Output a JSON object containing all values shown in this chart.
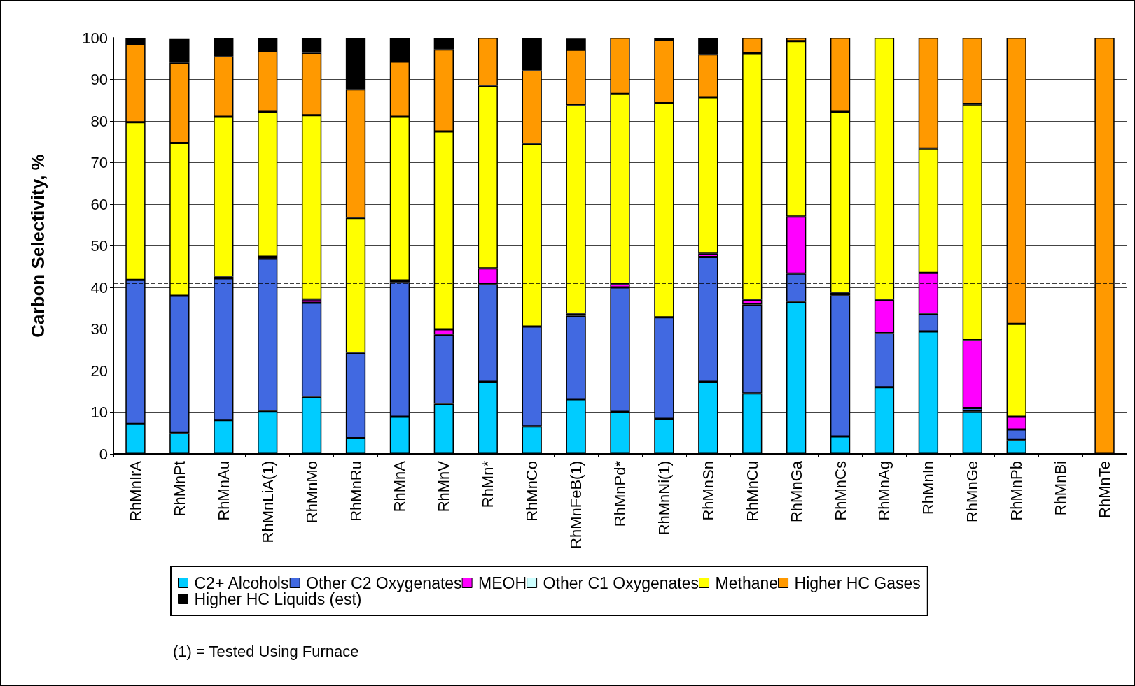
{
  "chart_data": {
    "type": "bar",
    "ylabel": "Carbon Selectivity, %",
    "stacked": true,
    "grid": "y",
    "legend": "bottom",
    "categories": [
      "RhMnIrA",
      "RhMnPt",
      "RhMnAu",
      "RhMnLiA(1)",
      "RhMnMo",
      "RhMnRu",
      "RhMnA",
      "RhMnV",
      "RhMn*",
      "RhMnCo",
      "RhMnFeB(1)",
      "RhMnPd*",
      "RhMnNi(1)",
      "RhMnSn",
      "RhMnCu",
      "RhMnGa",
      "RhMnCs",
      "RhMnAg",
      "RhMnIn",
      "RhMnGe",
      "RhMnPb",
      "RhMnBi",
      "RhMnTe"
    ],
    "ylim": [
      0,
      100
    ],
    "yticks": [
      0,
      10,
      20,
      30,
      40,
      50,
      60,
      70,
      80,
      90,
      100
    ],
    "series": [
      {
        "name": "C2+ Alcohols",
        "color": "#00ccff",
        "values": [
          7.2,
          5.0,
          8.1,
          10.3,
          13.7,
          3.8,
          8.9,
          12.0,
          17.3,
          6.6,
          13.1,
          10.1,
          8.4,
          17.3,
          14.5,
          36.5,
          4.2,
          16.0,
          29.4,
          10.2,
          3.3,
          null,
          null
        ]
      },
      {
        "name": "Other C2 Oxygenates",
        "color": "#4169e1",
        "values": [
          34.6,
          33.0,
          34.1,
          36.6,
          22.6,
          20.5,
          32.4,
          16.6,
          23.5,
          24.0,
          20.1,
          29.9,
          24.4,
          30.0,
          21.4,
          6.8,
          33.9,
          13.0,
          4.3,
          0.8,
          2.6,
          null,
          null
        ]
      },
      {
        "name": "MEOH",
        "color": "#ff00ff",
        "values": [
          null,
          null,
          0.4,
          0.5,
          0.8,
          null,
          0.4,
          1.3,
          3.8,
          null,
          0.5,
          0.8,
          null,
          0.8,
          1.1,
          13.7,
          0.6,
          8.0,
          9.8,
          16.3,
          3.0,
          null,
          null
        ]
      },
      {
        "name": "Other C1 Oxygenates",
        "color": "#ccffff",
        "values": [
          null,
          null,
          null,
          null,
          null,
          null,
          null,
          null,
          null,
          null,
          null,
          null,
          null,
          null,
          null,
          null,
          null,
          null,
          null,
          null,
          null,
          null,
          null
        ]
      },
      {
        "name": "Methane",
        "color": "#ffff00",
        "values": [
          37.9,
          36.7,
          38.4,
          34.8,
          44.3,
          32.4,
          39.3,
          47.6,
          43.9,
          43.9,
          50.1,
          45.7,
          51.5,
          37.6,
          59.3,
          42.2,
          43.5,
          63.0,
          29.9,
          56.7,
          22.3,
          null,
          null
        ]
      },
      {
        "name": "Higher HC Gases",
        "color": "#ff9900",
        "values": [
          18.8,
          19.3,
          14.6,
          14.6,
          15.0,
          30.9,
          13.3,
          19.7,
          11.5,
          17.7,
          13.3,
          13.5,
          15.2,
          10.3,
          3.7,
          0.8,
          17.8,
          null,
          26.6,
          16.0,
          68.8,
          null,
          100
        ]
      },
      {
        "name": "Higher HC Liquids (est)",
        "color": "#000000",
        "values": [
          1.5,
          5.7,
          4.4,
          3.2,
          3.6,
          12.4,
          5.7,
          2.8,
          null,
          7.8,
          2.7,
          null,
          0.5,
          4.0,
          null,
          null,
          null,
          null,
          null,
          null,
          null,
          null,
          null
        ]
      }
    ],
    "ref_lines": [
      {
        "axis": "y",
        "value": 41,
        "line_style": "dashed",
        "color": "#000000"
      }
    ],
    "annotations": [
      "(1) = Tested Using Furnace"
    ]
  }
}
